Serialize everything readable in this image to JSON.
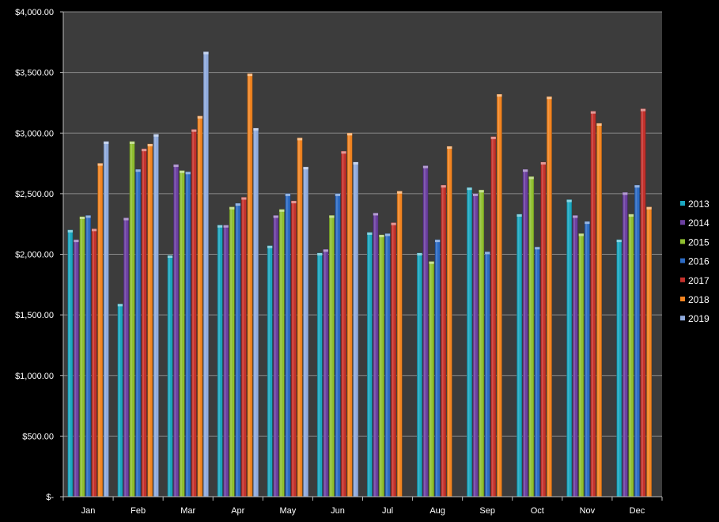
{
  "chart_data": {
    "type": "bar",
    "title": "",
    "xlabel": "",
    "ylabel": "",
    "ylim": [
      0,
      4000
    ],
    "grid": true,
    "legend_position": "right",
    "y_ticks": [
      "$-",
      "$500.00",
      "$1,000.00",
      "$1,500.00",
      "$2,000.00",
      "$2,500.00",
      "$3,000.00",
      "$3,500.00",
      "$4,000.00"
    ],
    "categories": [
      "Jan",
      "Feb",
      "Mar",
      "Apr",
      "May",
      "Jun",
      "Jul",
      "Aug",
      "Sep",
      "Oct",
      "Nov",
      "Dec"
    ],
    "series": [
      {
        "name": "2013",
        "color": "#1aa7c0",
        "values": [
          2200,
          1590,
          1990,
          2240,
          2070,
          2010,
          2180,
          2010,
          2550,
          2330,
          2450,
          2120
        ]
      },
      {
        "name": "2014",
        "color": "#6b3fa0",
        "values": [
          2120,
          2300,
          2740,
          2240,
          2320,
          2040,
          2340,
          2730,
          2500,
          2700,
          2320,
          2510
        ]
      },
      {
        "name": "2015",
        "color": "#8fbf2f",
        "values": [
          2310,
          2930,
          2690,
          2390,
          2370,
          2320,
          2160,
          1940,
          2530,
          2640,
          2170,
          2330
        ]
      },
      {
        "name": "2016",
        "color": "#2c6bc4",
        "values": [
          2320,
          2700,
          2680,
          2420,
          2500,
          2500,
          2170,
          2120,
          2020,
          2060,
          2270,
          2570
        ]
      },
      {
        "name": "2017",
        "color": "#c4312c",
        "values": [
          2210,
          2870,
          3030,
          2470,
          2440,
          2850,
          2260,
          2570,
          2970,
          2760,
          3180,
          3200
        ]
      },
      {
        "name": "2018",
        "color": "#f28420",
        "values": [
          2750,
          2910,
          3140,
          3490,
          2960,
          3000,
          2520,
          2890,
          3320,
          3300,
          3080,
          2390
        ]
      },
      {
        "name": "2019",
        "color": "#8faadc",
        "values": [
          2930,
          2990,
          3670,
          3040,
          2720,
          2760,
          null,
          null,
          null,
          null,
          null,
          null
        ]
      }
    ]
  }
}
